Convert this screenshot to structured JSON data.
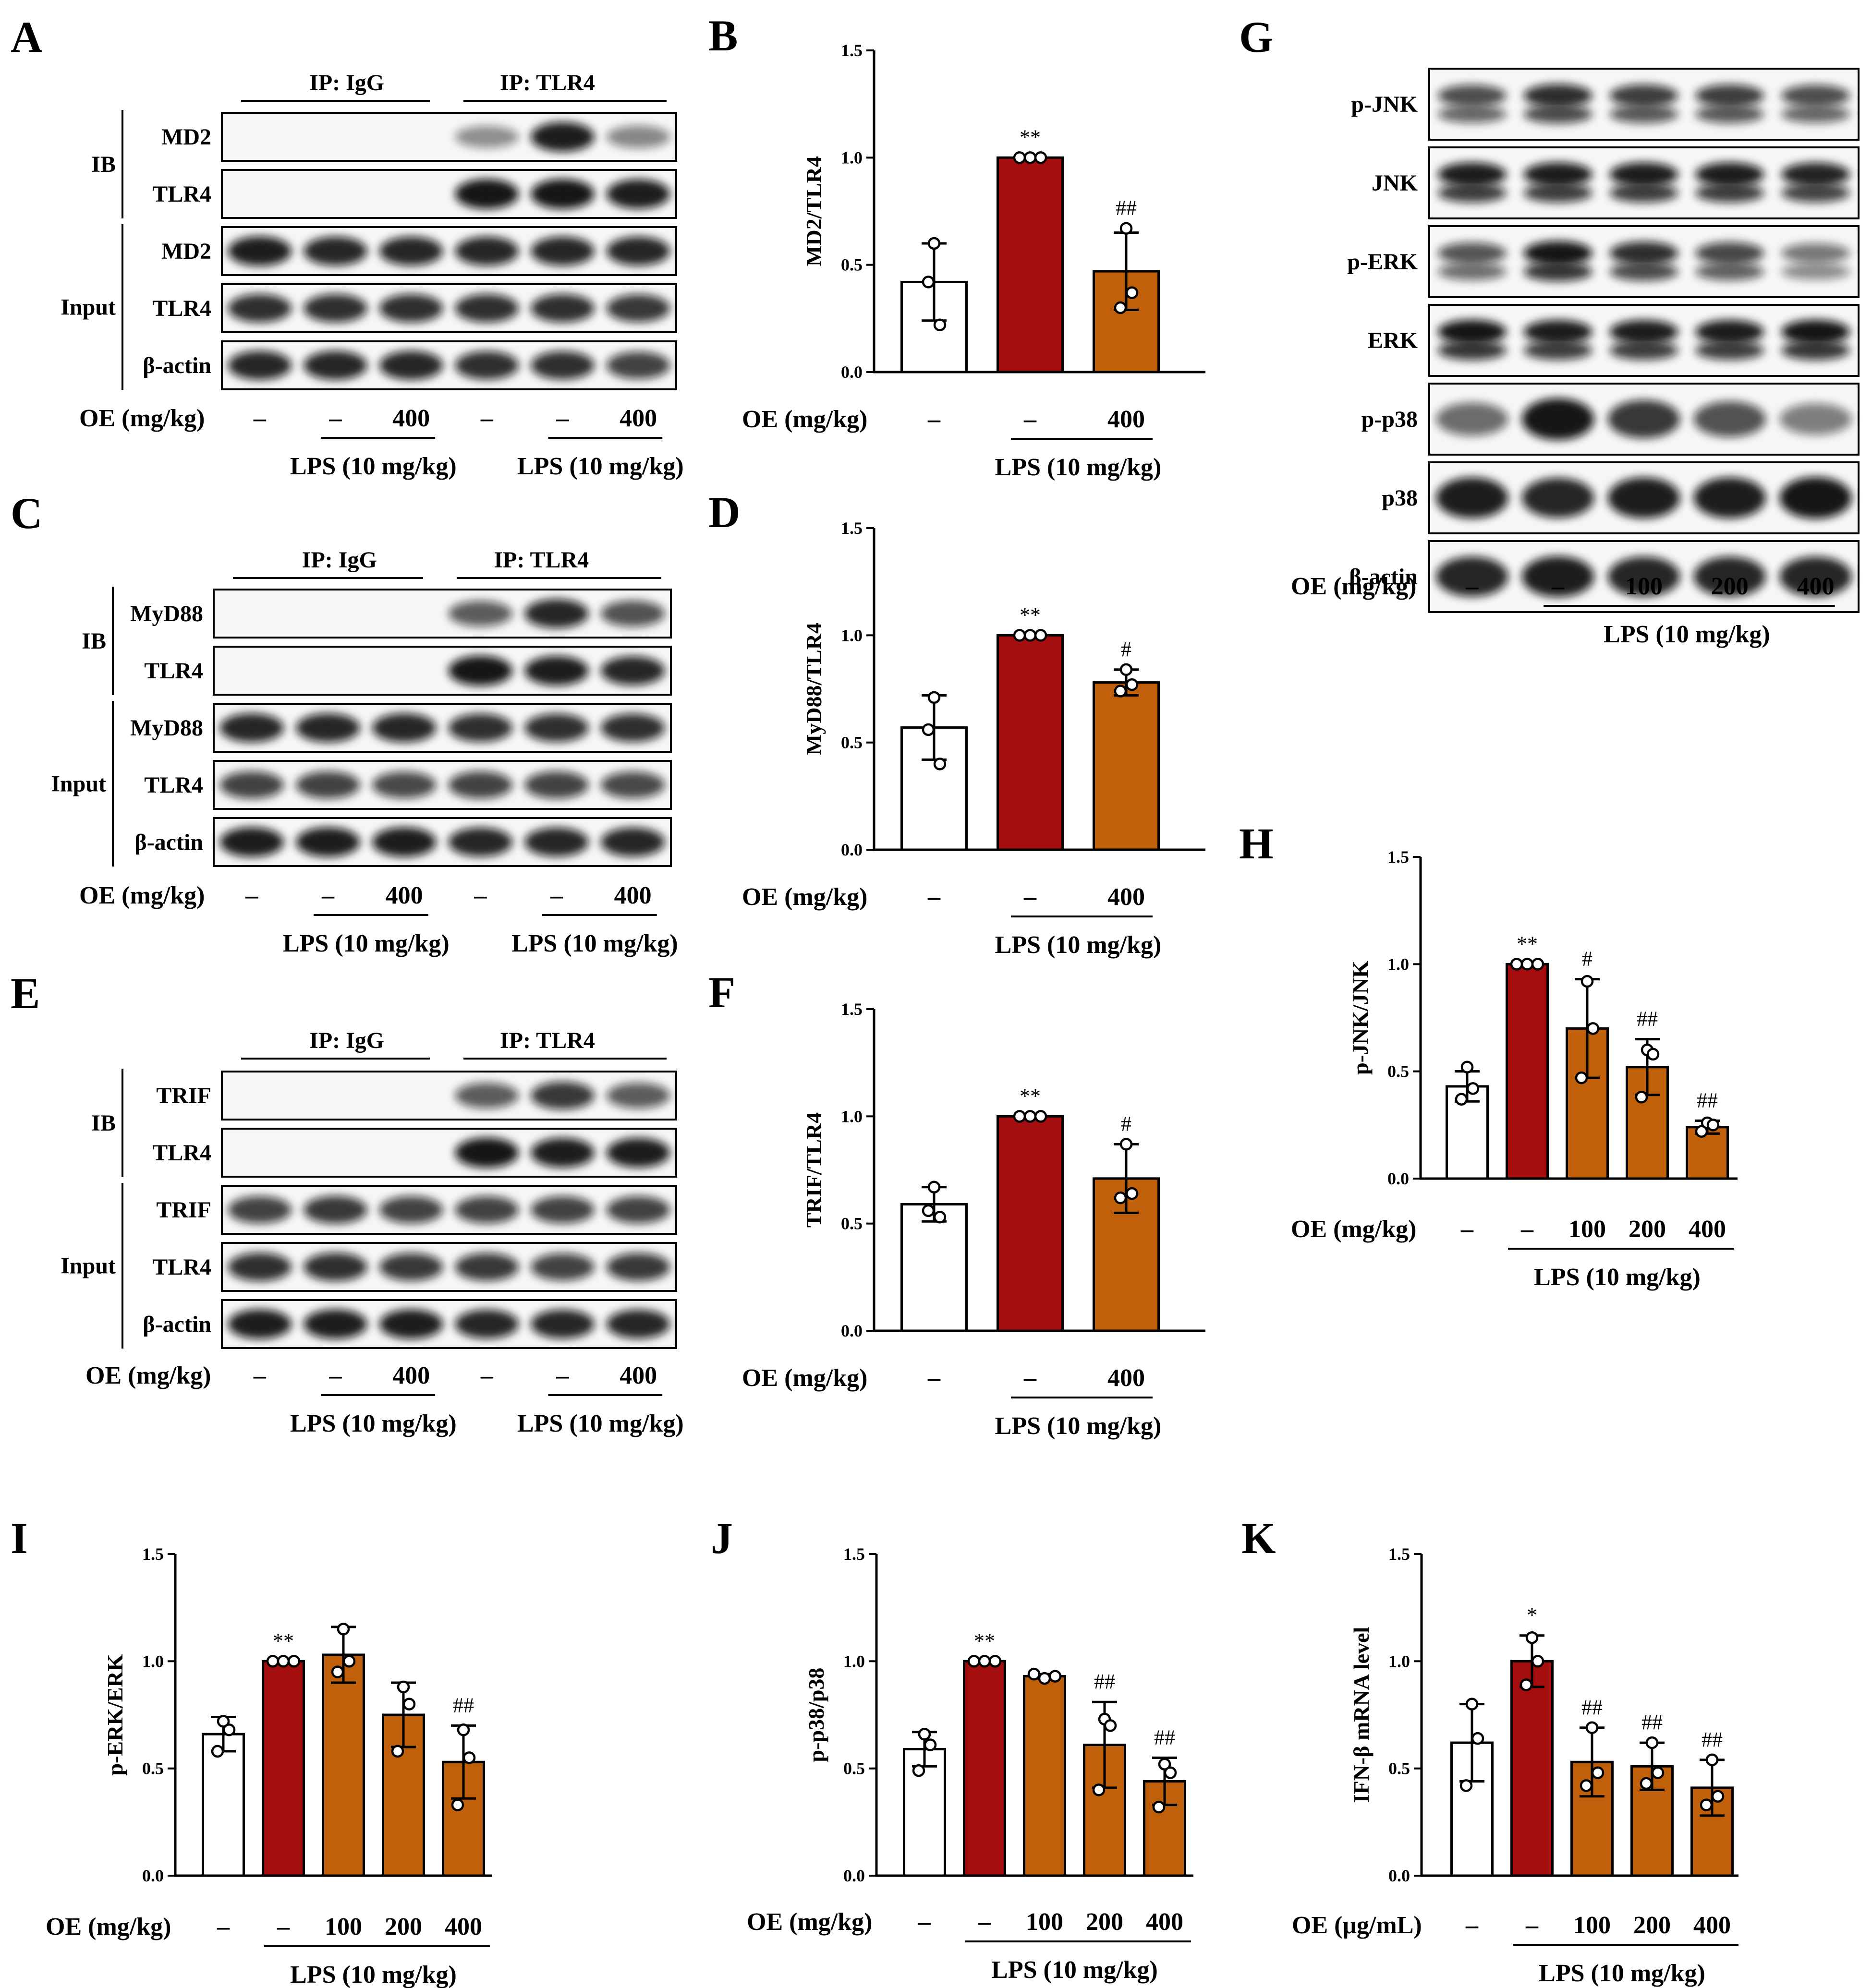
{
  "panels": {
    "A": {
      "letter": "A",
      "headers": [
        "IP: IgG",
        "IP: TLR4"
      ],
      "groups": [
        "IB",
        "Input"
      ],
      "rows": [
        {
          "label": "MD2",
          "group": "IB",
          "pattern": [
            0,
            0,
            0,
            0.25,
            0.9,
            0.3
          ]
        },
        {
          "label": "TLR4",
          "group": "IB",
          "pattern": [
            0,
            0,
            0,
            0.95,
            0.95,
            0.9
          ]
        },
        {
          "label": "MD2",
          "group": "Input",
          "pattern": [
            0.9,
            0.85,
            0.85,
            0.85,
            0.85,
            0.85
          ]
        },
        {
          "label": "TLR4",
          "group": "Input",
          "pattern": [
            0.8,
            0.8,
            0.8,
            0.8,
            0.8,
            0.75
          ]
        },
        {
          "label": "β-actin",
          "group": "Input",
          "pattern": [
            0.85,
            0.85,
            0.85,
            0.8,
            0.8,
            0.7
          ]
        }
      ],
      "oe_label": "OE (mg/kg)",
      "oe_values": [
        "–",
        "–",
        "400",
        "–",
        "–",
        "400"
      ],
      "lps_label": "LPS (10 mg/kg)"
    },
    "C": {
      "letter": "C",
      "headers": [
        "IP: IgG",
        "IP: TLR4"
      ],
      "groups": [
        "IB",
        "Input"
      ],
      "rows": [
        {
          "label": "MyD88",
          "group": "IB",
          "pattern": [
            0,
            0,
            0,
            0.55,
            0.85,
            0.6
          ]
        },
        {
          "label": "TLR4",
          "group": "IB",
          "pattern": [
            0,
            0,
            0,
            0.95,
            0.9,
            0.85
          ]
        },
        {
          "label": "MyD88",
          "group": "Input",
          "pattern": [
            0.85,
            0.85,
            0.85,
            0.8,
            0.8,
            0.8
          ]
        },
        {
          "label": "TLR4",
          "group": "Input",
          "pattern": [
            0.7,
            0.7,
            0.65,
            0.7,
            0.7,
            0.65
          ]
        },
        {
          "label": "β-actin",
          "group": "Input",
          "pattern": [
            0.9,
            0.9,
            0.9,
            0.85,
            0.85,
            0.85
          ]
        }
      ],
      "oe_label": "OE (mg/kg)",
      "oe_values": [
        "–",
        "–",
        "400",
        "–",
        "–",
        "400"
      ],
      "lps_label": "LPS (10 mg/kg)"
    },
    "E": {
      "letter": "E",
      "headers": [
        "IP: IgG",
        "IP: TLR4"
      ],
      "groups": [
        "IB",
        "Input"
      ],
      "rows": [
        {
          "label": "TRIF",
          "group": "IB",
          "pattern": [
            0,
            0,
            0,
            0.55,
            0.75,
            0.55
          ]
        },
        {
          "label": "TLR4",
          "group": "IB",
          "pattern": [
            0,
            0,
            0,
            0.95,
            0.9,
            0.9
          ]
        },
        {
          "label": "TRIF",
          "group": "Input",
          "pattern": [
            0.7,
            0.75,
            0.7,
            0.7,
            0.7,
            0.7
          ]
        },
        {
          "label": "TLR4",
          "group": "Input",
          "pattern": [
            0.8,
            0.8,
            0.75,
            0.75,
            0.7,
            0.75
          ]
        },
        {
          "label": "β-actin",
          "group": "Input",
          "pattern": [
            0.9,
            0.9,
            0.9,
            0.85,
            0.85,
            0.85
          ]
        }
      ],
      "oe_label": "OE (mg/kg)",
      "oe_values": [
        "–",
        "–",
        "400",
        "–",
        "–",
        "400"
      ],
      "lps_label": "LPS (10 mg/kg)"
    },
    "G": {
      "letter": "G",
      "rows": [
        {
          "label": "p-JNK",
          "pattern": [
            0.6,
            0.8,
            0.7,
            0.7,
            0.6
          ]
        },
        {
          "label": "JNK",
          "pattern": [
            0.9,
            0.9,
            0.9,
            0.9,
            0.85
          ]
        },
        {
          "label": "p-ERK",
          "pattern": [
            0.55,
            0.95,
            0.8,
            0.65,
            0.35
          ]
        },
        {
          "label": "ERK",
          "pattern": [
            0.95,
            0.9,
            0.9,
            0.9,
            0.95
          ]
        },
        {
          "label": "p-p38",
          "pattern": [
            0.45,
            0.95,
            0.75,
            0.6,
            0.35
          ]
        },
        {
          "label": "p38",
          "pattern": [
            0.9,
            0.85,
            0.9,
            0.9,
            0.95
          ]
        },
        {
          "label": "β-actin",
          "pattern": [
            0.85,
            0.9,
            0.85,
            0.85,
            0.85
          ]
        }
      ],
      "oe_label": "OE (mg/kg)",
      "oe_values": [
        "–",
        "–",
        "100",
        "200",
        "400"
      ],
      "lps_label": "LPS (10 mg/kg)"
    },
    "B": {
      "letter": "B"
    },
    "D": {
      "letter": "D"
    },
    "F": {
      "letter": "F"
    },
    "H": {
      "letter": "H"
    },
    "I": {
      "letter": "I"
    },
    "J": {
      "letter": "J"
    },
    "K": {
      "letter": "K"
    }
  },
  "colors": {
    "control": "#ffffff",
    "lps": "#a50e0e",
    "oe": "#c0600a",
    "outline": "#000000"
  },
  "chart_data": [
    {
      "panel": "B",
      "type": "bar",
      "ylabel": "MD2/TLR4",
      "ylim": [
        0,
        1.5
      ],
      "yticks": [
        "0.0",
        "0.5",
        "1.0",
        "1.5"
      ],
      "oe_label": "OE (mg/kg)",
      "oe_values": [
        "–",
        "–",
        "400"
      ],
      "lps_label": "LPS (10 mg/kg)",
      "values": [
        0.42,
        1.0,
        0.47
      ],
      "errors": [
        0.18,
        0.0,
        0.18
      ],
      "points": [
        [
          0.6,
          0.42,
          0.22
        ],
        [
          1.0,
          1.0,
          1.0
        ],
        [
          0.67,
          0.3,
          0.37
        ]
      ],
      "marks": [
        "",
        "**",
        "##"
      ]
    },
    {
      "panel": "D",
      "type": "bar",
      "ylabel": "MyD88/TLR4",
      "ylim": [
        0,
        1.5
      ],
      "yticks": [
        "0.0",
        "0.5",
        "1.0",
        "1.5"
      ],
      "oe_label": "OE (mg/kg)",
      "oe_values": [
        "–",
        "–",
        "400"
      ],
      "lps_label": "LPS (10 mg/kg)",
      "values": [
        0.57,
        1.0,
        0.78
      ],
      "errors": [
        0.15,
        0.0,
        0.06
      ],
      "points": [
        [
          0.71,
          0.56,
          0.4
        ],
        [
          1.0,
          1.0,
          1.0
        ],
        [
          0.84,
          0.74,
          0.77
        ]
      ],
      "marks": [
        "",
        "**",
        "#"
      ]
    },
    {
      "panel": "F",
      "type": "bar",
      "ylabel": "TRIF/TLR4",
      "ylim": [
        0,
        1.5
      ],
      "yticks": [
        "0.0",
        "0.5",
        "1.0",
        "1.5"
      ],
      "oe_label": "OE (mg/kg)",
      "oe_values": [
        "–",
        "–",
        "400"
      ],
      "lps_label": "LPS (10 mg/kg)",
      "values": [
        0.59,
        1.0,
        0.71
      ],
      "errors": [
        0.08,
        0.0,
        0.16
      ],
      "points": [
        [
          0.67,
          0.56,
          0.53
        ],
        [
          1.0,
          1.0,
          1.0
        ],
        [
          0.87,
          0.62,
          0.64
        ]
      ],
      "marks": [
        "",
        "**",
        "#"
      ]
    },
    {
      "panel": "H",
      "type": "bar",
      "ylabel": "p-JNK/JNK",
      "ylim": [
        0,
        1.5
      ],
      "yticks": [
        "0.0",
        "0.5",
        "1.0",
        "1.5"
      ],
      "oe_label": "OE (mg/kg)",
      "oe_values": [
        "–",
        "–",
        "100",
        "200",
        "400"
      ],
      "lps_label": "LPS (10 mg/kg)",
      "values": [
        0.43,
        1.0,
        0.7,
        0.52,
        0.24
      ],
      "errors": [
        0.07,
        0.0,
        0.23,
        0.13,
        0.03
      ],
      "points": [
        [
          0.52,
          0.37,
          0.42
        ],
        [
          1.0,
          1.0,
          1.0
        ],
        [
          0.92,
          0.47,
          0.7
        ],
        [
          0.6,
          0.38,
          0.58
        ],
        [
          0.26,
          0.22,
          0.25
        ]
      ],
      "marks": [
        "",
        "**",
        "#",
        "##",
        "##"
      ]
    },
    {
      "panel": "I",
      "type": "bar",
      "ylabel": "p-ERK/ERK",
      "ylim": [
        0,
        1.5
      ],
      "yticks": [
        "0.0",
        "0.5",
        "1.0",
        "1.5"
      ],
      "oe_label": "OE (mg/kg)",
      "oe_values": [
        "–",
        "–",
        "100",
        "200",
        "400"
      ],
      "lps_label": "LPS (10 mg/kg)",
      "values": [
        0.66,
        1.0,
        1.03,
        0.75,
        0.53
      ],
      "errors": [
        0.08,
        0.0,
        0.13,
        0.15,
        0.17
      ],
      "points": [
        [
          0.72,
          0.58,
          0.68
        ],
        [
          1.0,
          1.0,
          1.0
        ],
        [
          1.15,
          0.95,
          1.0
        ],
        [
          0.88,
          0.58,
          0.8
        ],
        [
          0.68,
          0.33,
          0.55
        ]
      ],
      "marks": [
        "",
        "**",
        "",
        "",
        "##"
      ]
    },
    {
      "panel": "J",
      "type": "bar",
      "ylabel": "p-p38/p38",
      "ylim": [
        0,
        1.5
      ],
      "yticks": [
        "0.0",
        "0.5",
        "1.0",
        "1.5"
      ],
      "oe_label": "OE (mg/kg)",
      "oe_values": [
        "–",
        "–",
        "100",
        "200",
        "400"
      ],
      "lps_label": "LPS (10 mg/kg)",
      "values": [
        0.59,
        1.0,
        0.93,
        0.61,
        0.44
      ],
      "errors": [
        0.08,
        0.0,
        0.01,
        0.2,
        0.11
      ],
      "points": [
        [
          0.66,
          0.49,
          0.61
        ],
        [
          1.0,
          1.0,
          1.0
        ],
        [
          0.94,
          0.92,
          0.93
        ],
        [
          0.73,
          0.4,
          0.7
        ],
        [
          0.52,
          0.32,
          0.48
        ]
      ],
      "marks": [
        "",
        "**",
        "",
        "##",
        "##"
      ]
    },
    {
      "panel": "K",
      "type": "bar",
      "ylabel": "IFN-β mRNA level",
      "ylim": [
        0,
        1.5
      ],
      "yticks": [
        "0.0",
        "0.5",
        "1.0",
        "1.5"
      ],
      "oe_label": "OE (μg/mL)",
      "oe_values": [
        "–",
        "–",
        "100",
        "200",
        "400"
      ],
      "lps_label": "LPS (10 mg/kg)",
      "values": [
        0.62,
        1.0,
        0.53,
        0.51,
        0.41
      ],
      "errors": [
        0.18,
        0.12,
        0.16,
        0.11,
        0.13
      ],
      "points": [
        [
          0.8,
          0.42,
          0.64
        ],
        [
          1.11,
          0.89,
          1.0
        ],
        [
          0.69,
          0.42,
          0.48
        ],
        [
          0.62,
          0.43,
          0.48
        ],
        [
          0.54,
          0.33,
          0.37
        ]
      ],
      "marks": [
        "",
        "*",
        "##",
        "##",
        "##"
      ]
    }
  ]
}
